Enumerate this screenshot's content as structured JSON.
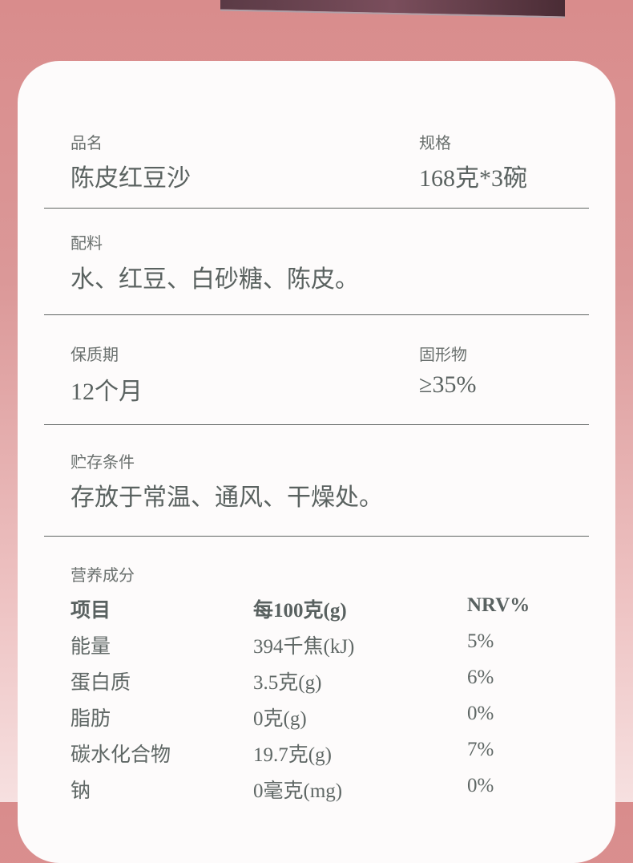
{
  "sections": {
    "name_label": "品名",
    "name_value": "陈皮红豆沙",
    "spec_label": "规格",
    "spec_value": "168克*3碗",
    "ingredients_label": "配料",
    "ingredients_value": "水、红豆、白砂糖、陈皮。",
    "shelf_label": "保质期",
    "shelf_value": "12个月",
    "solids_label": "固形物",
    "solids_value": "≥35%",
    "storage_label": "贮存条件",
    "storage_value": "存放于常温、通风、干燥处。",
    "nutrition_label": "营养成分"
  },
  "nutrition": {
    "headers": [
      "项目",
      "每100克(g)",
      "NRV%"
    ],
    "rows": [
      [
        "能量",
        "394千焦(kJ)",
        "5%"
      ],
      [
        "蛋白质",
        "3.5克(g)",
        "6%"
      ],
      [
        "脂肪",
        "0克(g)",
        "0%"
      ],
      [
        "碳水化合物",
        "19.7克(g)",
        "7%"
      ],
      [
        "钠",
        "0毫克(mg)",
        "0%"
      ]
    ]
  },
  "colors": {
    "background_top": "#d98c8c",
    "card": "#fdfbfb",
    "text": "#5a6260"
  }
}
